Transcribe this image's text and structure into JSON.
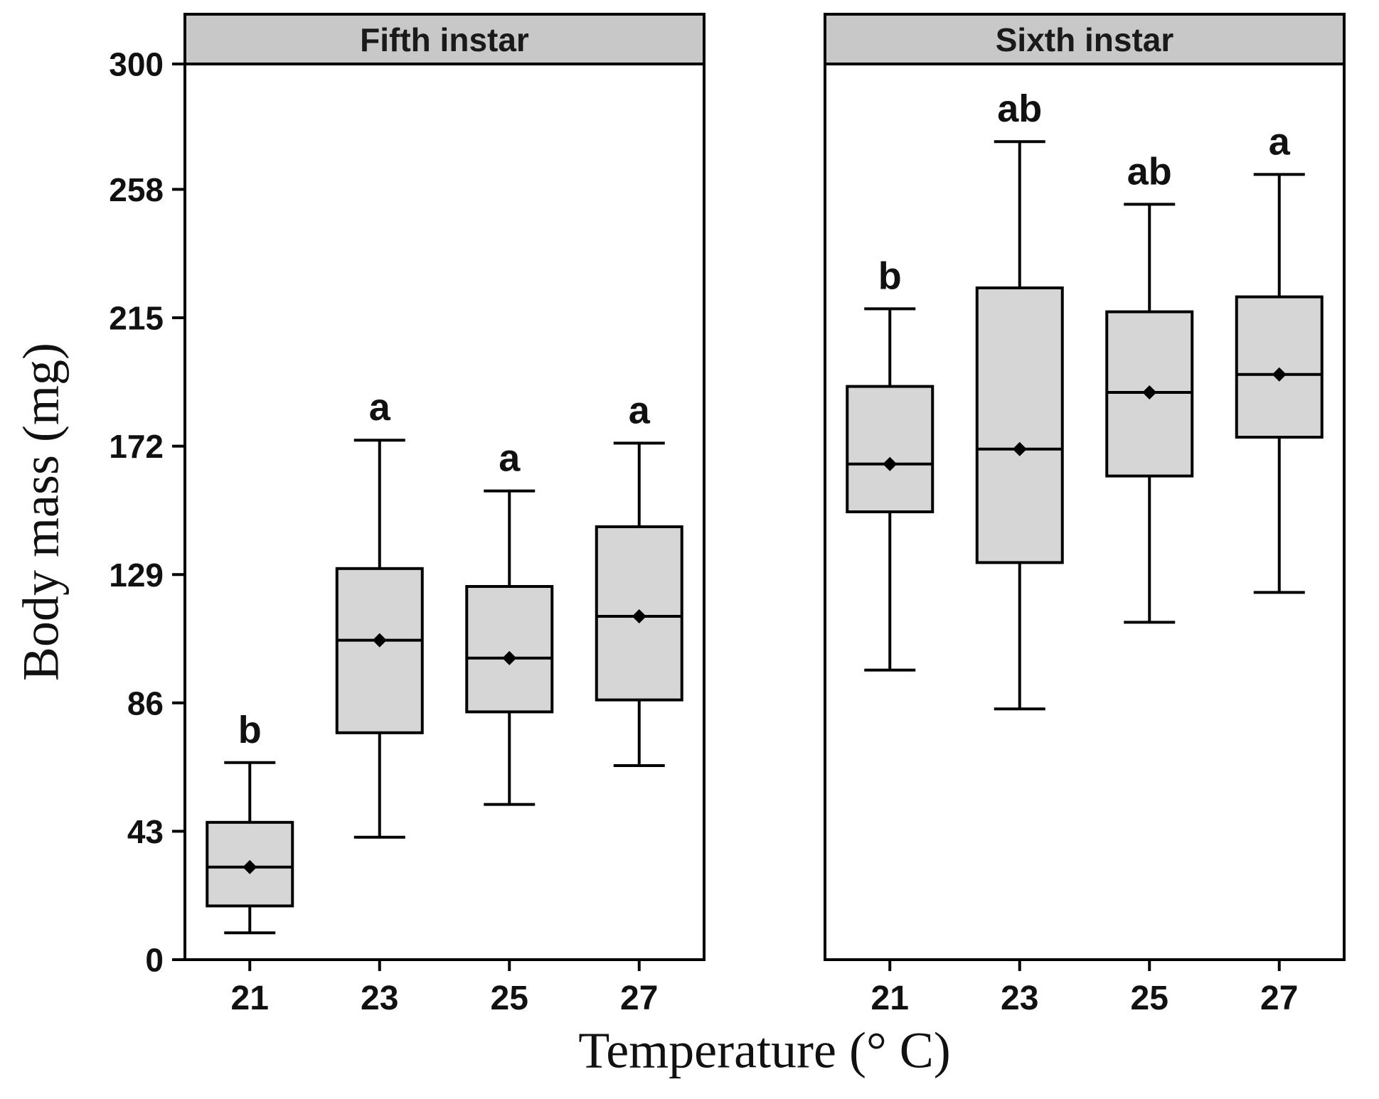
{
  "chart_data": {
    "type": "boxplot",
    "title": "",
    "ylabel": "Body mass (mg)",
    "xlabel": "Temperature (° C)",
    "ylim": [
      0,
      300
    ],
    "yticks": [
      0,
      43,
      86,
      129,
      172,
      215,
      258,
      300
    ],
    "categories": [
      "21",
      "23",
      "25",
      "27"
    ],
    "grid": false,
    "legend": "none",
    "panels": [
      {
        "title": "Fifth instar",
        "boxes": [
          {
            "category": "21",
            "min": 9,
            "q1": 18,
            "median": 31,
            "q3": 46,
            "max": 66,
            "mean": 31,
            "label": "b"
          },
          {
            "category": "23",
            "min": 41,
            "q1": 76,
            "median": 107,
            "q3": 131,
            "max": 174,
            "mean": 107,
            "label": "a"
          },
          {
            "category": "25",
            "min": 52,
            "q1": 83,
            "median": 101,
            "q3": 125,
            "max": 157,
            "mean": 101,
            "label": "a"
          },
          {
            "category": "27",
            "min": 65,
            "q1": 87,
            "median": 115,
            "q3": 145,
            "max": 173,
            "mean": 115,
            "label": "a"
          }
        ]
      },
      {
        "title": "Sixth instar",
        "boxes": [
          {
            "category": "21",
            "min": 97,
            "q1": 150,
            "median": 166,
            "q3": 192,
            "max": 218,
            "mean": 166,
            "label": "b"
          },
          {
            "category": "23",
            "min": 84,
            "q1": 133,
            "median": 171,
            "q3": 225,
            "max": 274,
            "mean": 171,
            "label": "ab"
          },
          {
            "category": "25",
            "min": 113,
            "q1": 162,
            "median": 190,
            "q3": 217,
            "max": 253,
            "mean": 190,
            "label": "ab"
          },
          {
            "category": "27",
            "min": 123,
            "q1": 175,
            "median": 196,
            "q3": 222,
            "max": 263,
            "mean": 196,
            "label": "a"
          }
        ]
      }
    ],
    "colors": {
      "box_fill": "#d6d6d6",
      "panel_header_fill": "#c8c8c8",
      "stroke": "#000000",
      "panel_fill": "#ffffff"
    }
  }
}
